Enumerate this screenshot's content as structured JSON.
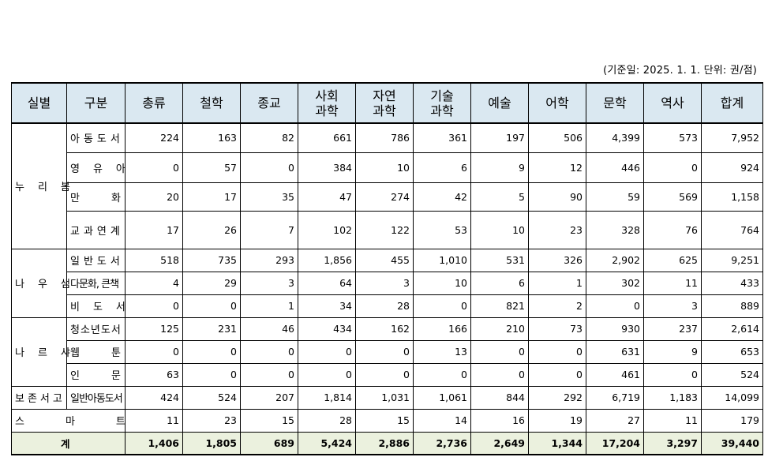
{
  "note": "(기준일: 2025. 1. 1. 단위: 권/점)",
  "headers": {
    "c0": "실별",
    "c1": "구분",
    "c2": "총류",
    "c3": "철학",
    "c4": "종교",
    "c5a": "사회",
    "c5b": "과학",
    "c6a": "자연",
    "c6b": "과학",
    "c7a": "기술",
    "c7b": "과학",
    "c8": "예술",
    "c9": "어학",
    "c10": "문학",
    "c11": "역사",
    "c12": "합계"
  },
  "groups": {
    "nuri": "누리봄",
    "nau": "나우샘",
    "naru": "나르샤",
    "bojon": "보존서고",
    "smart": "스마트"
  },
  "rows": [
    {
      "label": "아동도서",
      "values": [
        "224",
        "163",
        "82",
        "661",
        "786",
        "361",
        "197",
        "506",
        "4,399",
        "573",
        "7,952"
      ]
    },
    {
      "label": "영유아",
      "values": [
        "0",
        "57",
        "0",
        "384",
        "10",
        "6",
        "9",
        "12",
        "446",
        "0",
        "924"
      ]
    },
    {
      "label": "만화",
      "values": [
        "20",
        "17",
        "35",
        "47",
        "274",
        "42",
        "5",
        "90",
        "59",
        "569",
        "1,158"
      ]
    },
    {
      "label": "교과연계",
      "values": [
        "17",
        "26",
        "7",
        "102",
        "122",
        "53",
        "10",
        "23",
        "328",
        "76",
        "764"
      ]
    },
    {
      "label": "일반도서",
      "values": [
        "518",
        "735",
        "293",
        "1,856",
        "455",
        "1,010",
        "531",
        "326",
        "2,902",
        "625",
        "9,251"
      ]
    },
    {
      "label": "다문화, 큰책",
      "values": [
        "4",
        "29",
        "3",
        "64",
        "3",
        "10",
        "6",
        "1",
        "302",
        "11",
        "433"
      ]
    },
    {
      "label": "비도서",
      "values": [
        "0",
        "0",
        "1",
        "34",
        "28",
        "0",
        "821",
        "2",
        "0",
        "3",
        "889"
      ]
    },
    {
      "label": "청소년도서",
      "values": [
        "125",
        "231",
        "46",
        "434",
        "162",
        "166",
        "210",
        "73",
        "930",
        "237",
        "2,614"
      ]
    },
    {
      "label": "웹툰",
      "values": [
        "0",
        "0",
        "0",
        "0",
        "0",
        "13",
        "0",
        "0",
        "631",
        "9",
        "653"
      ]
    },
    {
      "label": "인문",
      "values": [
        "63",
        "0",
        "0",
        "0",
        "0",
        "0",
        "0",
        "0",
        "461",
        "0",
        "524"
      ]
    },
    {
      "label": "일반아동도서",
      "values": [
        "424",
        "524",
        "207",
        "1,814",
        "1,031",
        "1,061",
        "844",
        "292",
        "6,719",
        "1,183",
        "14,099"
      ]
    },
    {
      "label": "",
      "values": [
        "11",
        "23",
        "15",
        "28",
        "15",
        "14",
        "16",
        "19",
        "27",
        "11",
        "179"
      ]
    }
  ],
  "total": {
    "label": "계",
    "values": [
      "1,406",
      "1,805",
      "689",
      "5,424",
      "2,886",
      "2,736",
      "2,649",
      "1,344",
      "17,204",
      "3,297",
      "39,440"
    ]
  }
}
